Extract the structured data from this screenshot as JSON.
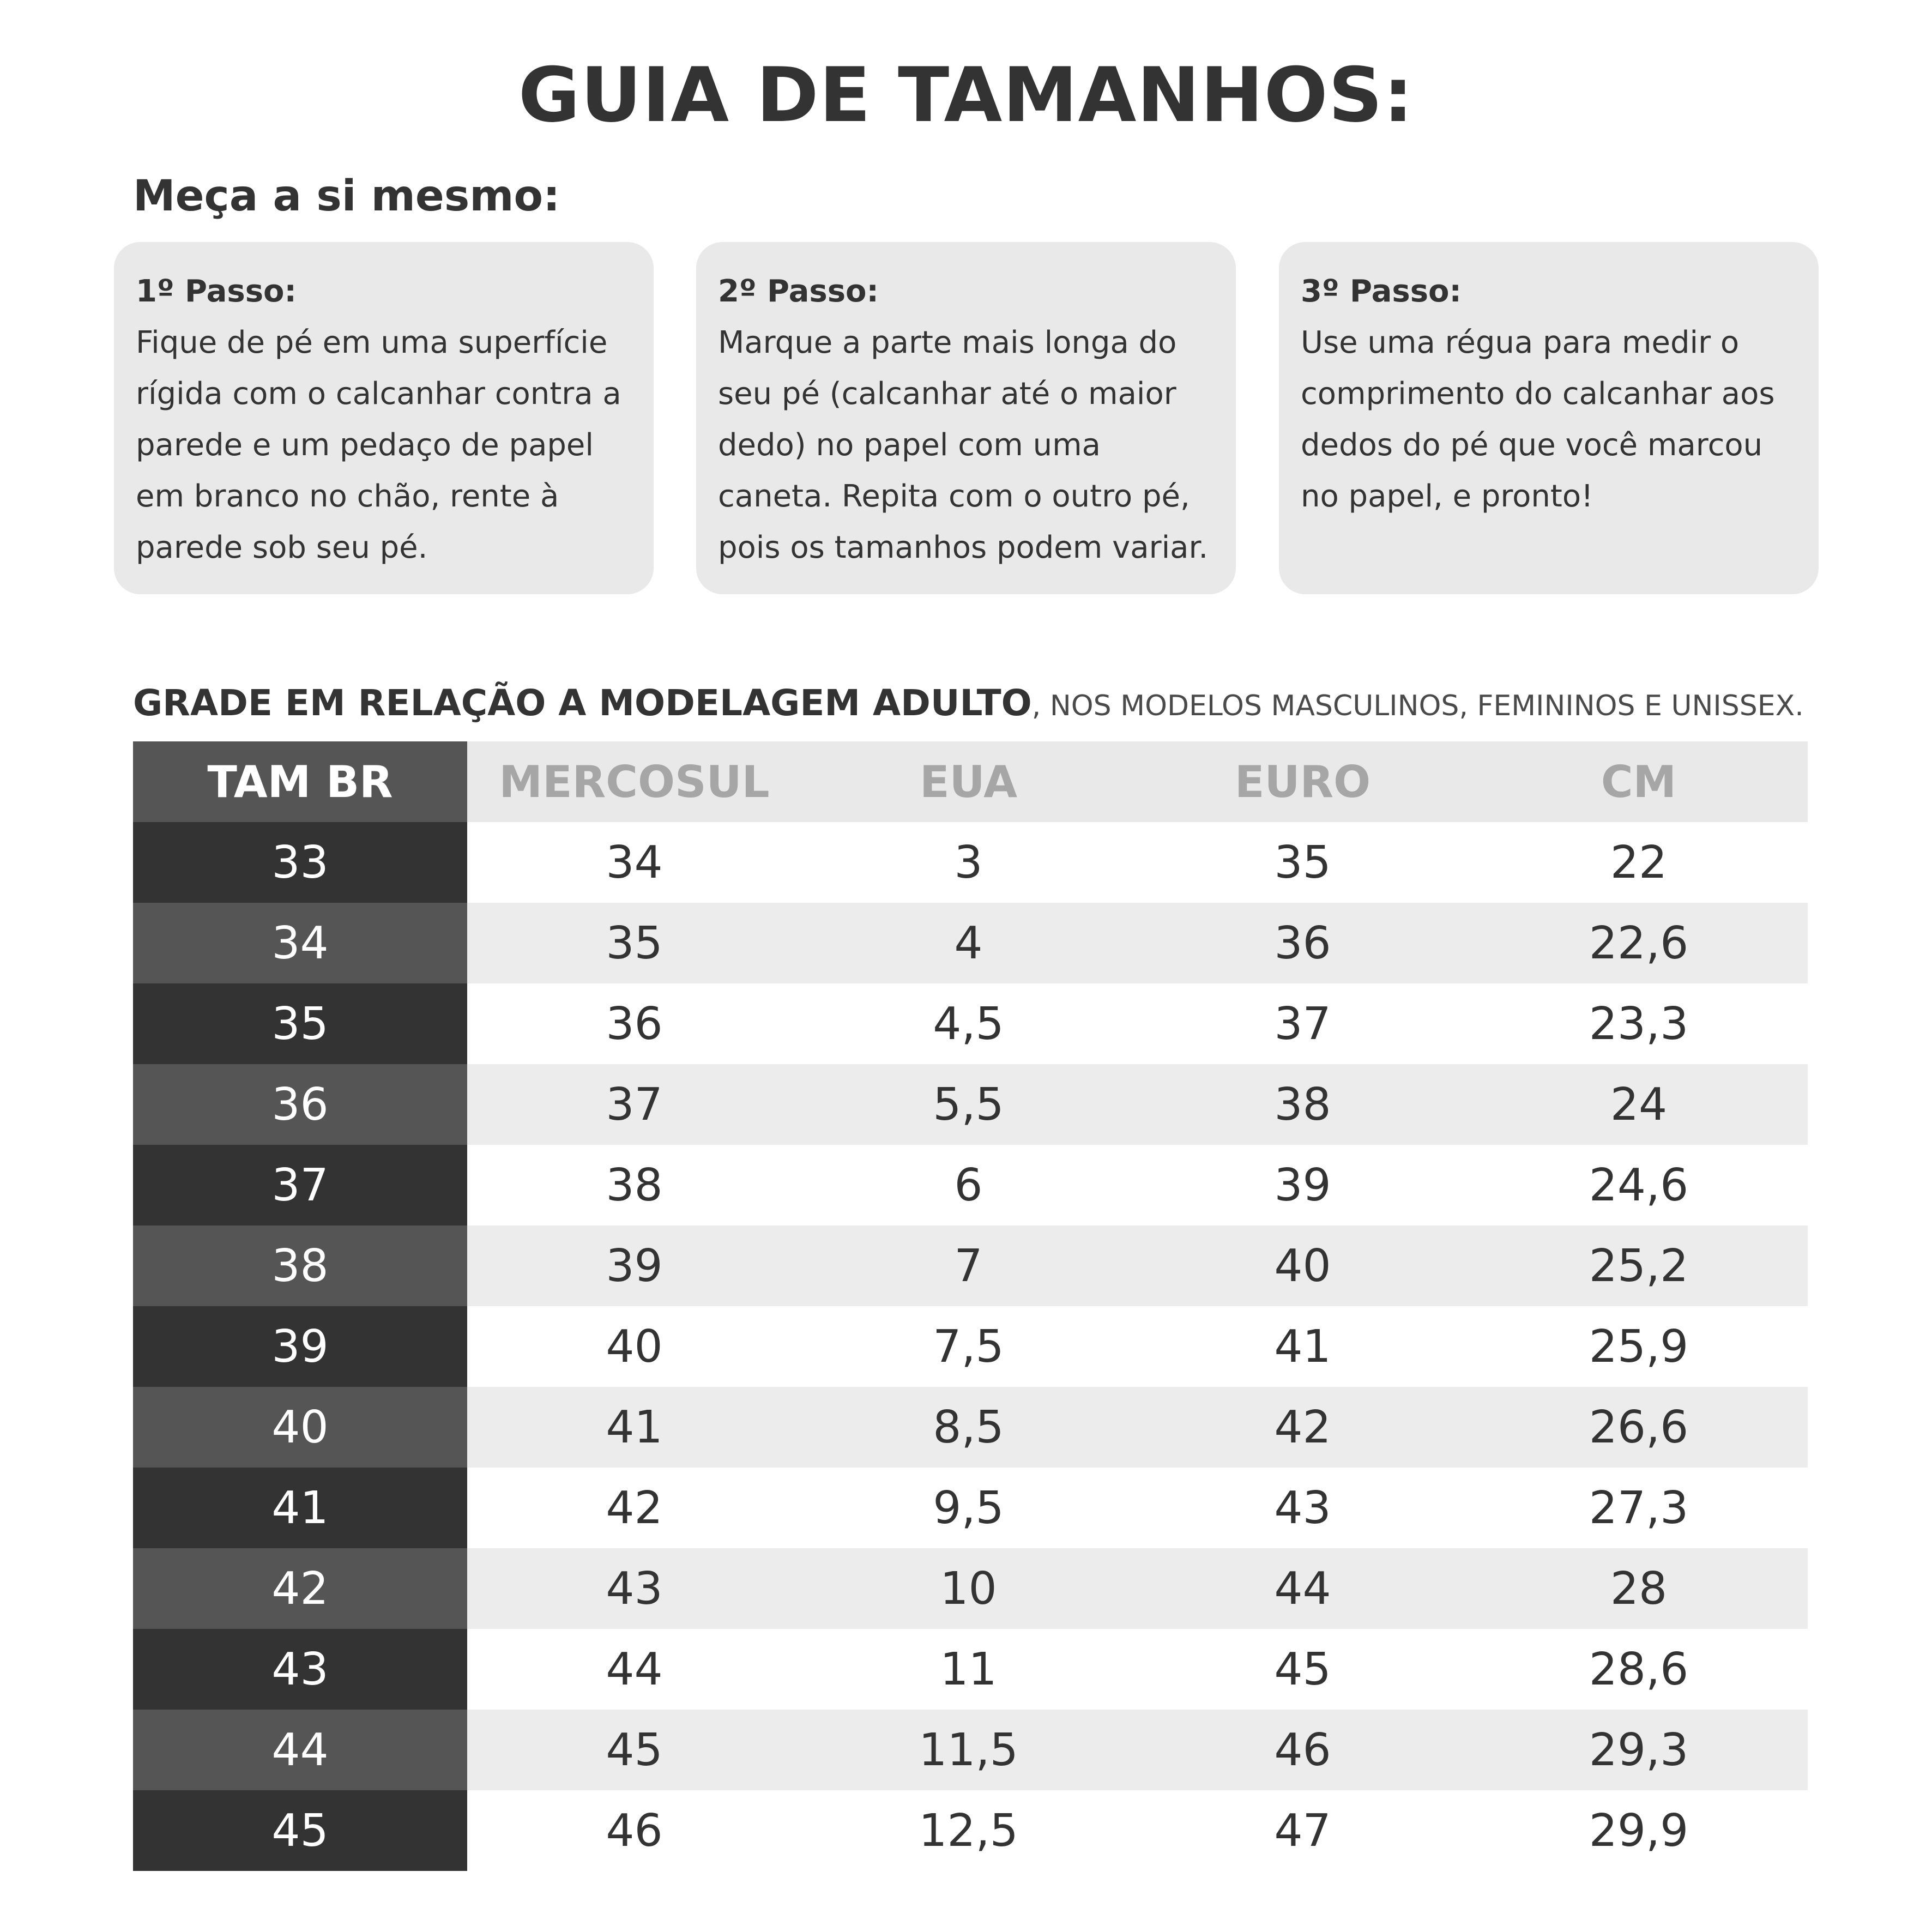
{
  "title": "GUIA DE TAMANHOS:",
  "subtitle": "Meça a si mesmo:",
  "steps": [
    {
      "title": "1º Passo:",
      "text": "Fique de pé em uma superfície rígida com o calcanhar contra a parede e um pedaço de papel em branco no chão, rente à parede sob seu pé."
    },
    {
      "title": "2º Passo:",
      "text": "Marque a parte mais longa do seu pé (calcanhar até o maior dedo) no papel com uma caneta. Repita com o outro pé, pois os tamanhos podem variar."
    },
    {
      "title": "3º Passo:",
      "text": "Use uma régua para medir o comprimento do calcanhar aos dedos do pé que você marcou no papel, e pronto!"
    }
  ],
  "grade": {
    "caption_bold": "GRADE EM RELAÇÃO A MODELAGEM ADULTO",
    "caption_light": ", NOS MODELOS MASCULINOS, FEMININOS E UNISSEX."
  },
  "table": {
    "headers": [
      "TAM BR",
      "MERCOSUL",
      "EUA",
      "EURO",
      "CM"
    ],
    "rows": [
      [
        "33",
        "34",
        "3",
        "35",
        "22"
      ],
      [
        "34",
        "35",
        "4",
        "36",
        "22,6"
      ],
      [
        "35",
        "36",
        "4,5",
        "37",
        "23,3"
      ],
      [
        "36",
        "37",
        "5,5",
        "38",
        "24"
      ],
      [
        "37",
        "38",
        "6",
        "39",
        "24,6"
      ],
      [
        "38",
        "39",
        "7",
        "40",
        "25,2"
      ],
      [
        "39",
        "40",
        "7,5",
        "41",
        "25,9"
      ],
      [
        "40",
        "41",
        "8,5",
        "42",
        "26,6"
      ],
      [
        "41",
        "42",
        "9,5",
        "43",
        "27,3"
      ],
      [
        "42",
        "43",
        "10",
        "44",
        "28"
      ],
      [
        "43",
        "44",
        "11",
        "45",
        "28,6"
      ],
      [
        "44",
        "45",
        "11,5",
        "46",
        "29,3"
      ],
      [
        "45",
        "46",
        "12,5",
        "47",
        "29,9"
      ]
    ]
  },
  "colors": {
    "text": "#333333",
    "card_bg": "#e9e9e9",
    "header_gray_text": "#a6a6a6",
    "br_dark": "#333333",
    "br_mid": "#555555"
  }
}
